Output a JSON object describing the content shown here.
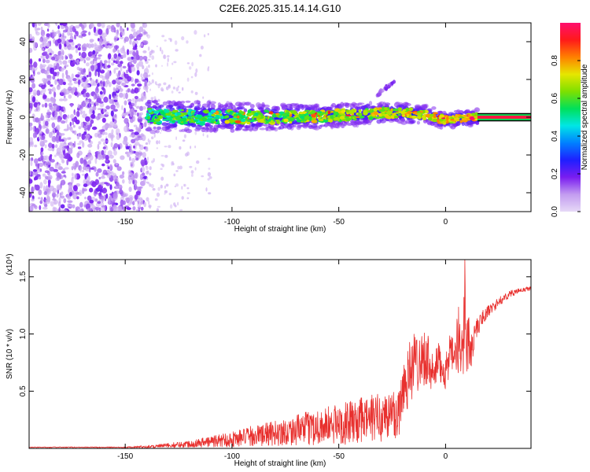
{
  "title": "C2E6.2025.315.14.14.G10",
  "colors": {
    "snr_line": "#e8302e",
    "background": "#ffffff",
    "axis": "#000000",
    "colorbar_stops": [
      "#e6d9f7",
      "#c39cf0",
      "#7a1df0",
      "#1f1fff",
      "#0080ff",
      "#00e6e6",
      "#00e05a",
      "#7ee000",
      "#e6e600",
      "#ff8000",
      "#ff1a1a",
      "#ff0f6e"
    ]
  },
  "chart_data": [
    {
      "type": "heatmap",
      "title": "C2E6.2025.315.14.14.G10",
      "xlabel": "Height of straight line (km)",
      "ylabel": "Frequency (Hz)",
      "xlim": [
        -195,
        40
      ],
      "ylim": [
        -50,
        50
      ],
      "x_ticks": [
        -150,
        -100,
        -50,
        0
      ],
      "x_tick_labels": [
        "-150",
        "-100",
        "-50",
        "0"
      ],
      "y_ticks": [
        -40,
        -20,
        0,
        20,
        40
      ],
      "y_tick_labels": [
        "-40",
        "-20",
        "0",
        "20",
        "40"
      ],
      "colorbar": {
        "label": "Normalized spectral amplitude",
        "range": [
          0,
          1
        ],
        "ticks": [
          0.0,
          0.2,
          0.4,
          0.6,
          0.8
        ],
        "tick_labels": [
          "0.0",
          "0.2",
          "0.4",
          "0.6",
          "0.8"
        ]
      },
      "regions": [
        {
          "name": "noise",
          "x_range": [
            -195,
            -140
          ],
          "freq_range": [
            -50,
            50
          ],
          "amplitude": [
            0.05,
            0.2
          ]
        },
        {
          "name": "scattered",
          "x_range": [
            -140,
            -110
          ],
          "freq_range": [
            -50,
            45
          ],
          "amplitude": [
            0.02,
            0.08
          ]
        },
        {
          "name": "signal_band",
          "x_range": [
            -140,
            40
          ],
          "center_freq": 0,
          "half_width_hz": [
            5,
            2
          ],
          "amplitude": [
            0.2,
            1.0
          ]
        },
        {
          "name": "side_feature",
          "x_range": [
            -32,
            -24
          ],
          "freq_range": [
            12,
            19
          ],
          "amplitude": [
            0.1,
            0.2
          ]
        }
      ],
      "signal_center_trend": [
        {
          "x": -140,
          "freq": 0.5
        },
        {
          "x": -100,
          "freq": 0.0
        },
        {
          "x": -60,
          "freq": 0.5
        },
        {
          "x": -25,
          "freq": 2.5
        },
        {
          "x": -10,
          "freq": 1.5
        },
        {
          "x": 0,
          "freq": -1.5
        },
        {
          "x": 15,
          "freq": 0.0
        },
        {
          "x": 40,
          "freq": 0.0
        }
      ]
    },
    {
      "type": "line",
      "xlabel": "Height of straight line (km)",
      "ylabel": "SNR (10 * v/v)",
      "scale_label": "(x10⁴)",
      "xlim": [
        -195,
        40
      ],
      "ylim": [
        0,
        1.65
      ],
      "x_ticks": [
        -150,
        -100,
        -50,
        0
      ],
      "x_tick_labels": [
        "-150",
        "-100",
        "-50",
        "0"
      ],
      "y_ticks": [
        0.5,
        1.0,
        1.5
      ],
      "y_tick_labels": [
        "0.5",
        "1.0",
        "1.5"
      ],
      "series": [
        {
          "name": "SNR",
          "envelope_x": [
            -195,
            -150,
            -140,
            -130,
            -120,
            -110,
            -100,
            -90,
            -80,
            -70,
            -60,
            -50,
            -40,
            -30,
            -22,
            -20,
            -18,
            -16,
            -14,
            -12,
            -10,
            -8,
            -6,
            -4,
            -2,
            0,
            2,
            4,
            6,
            8,
            9,
            10,
            11,
            12,
            14,
            16,
            18,
            20,
            25,
            30,
            35,
            40
          ],
          "envelope_mean": [
            0.01,
            0.01,
            0.015,
            0.025,
            0.04,
            0.06,
            0.08,
            0.11,
            0.13,
            0.16,
            0.19,
            0.21,
            0.24,
            0.28,
            0.3,
            0.55,
            0.62,
            0.7,
            0.76,
            0.78,
            0.8,
            0.78,
            0.6,
            0.75,
            0.72,
            0.68,
            0.82,
            0.78,
            0.95,
            0.82,
            1.3,
            0.9,
            0.95,
            0.85,
            1.02,
            1.1,
            1.16,
            1.2,
            1.28,
            1.35,
            1.38,
            1.4
          ],
          "envelope_noise": [
            0.004,
            0.004,
            0.012,
            0.02,
            0.03,
            0.05,
            0.07,
            0.09,
            0.11,
            0.13,
            0.16,
            0.18,
            0.2,
            0.22,
            0.24,
            0.3,
            0.3,
            0.3,
            0.28,
            0.26,
            0.25,
            0.22,
            0.2,
            0.18,
            0.18,
            0.18,
            0.17,
            0.17,
            0.3,
            0.35,
            0.35,
            0.3,
            0.2,
            0.15,
            0.1,
            0.08,
            0.06,
            0.05,
            0.04,
            0.03,
            0.02,
            0.02
          ],
          "peak_x": 9,
          "peak_value": 1.65
        }
      ]
    }
  ]
}
